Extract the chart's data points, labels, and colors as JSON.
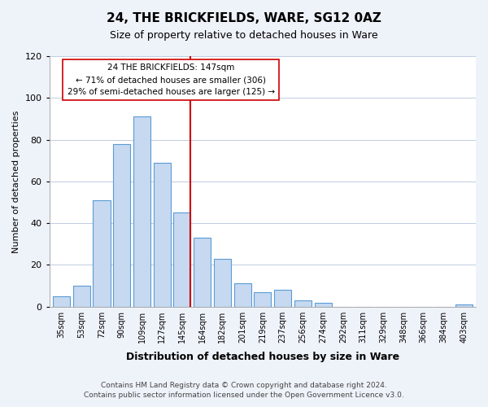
{
  "title": "24, THE BRICKFIELDS, WARE, SG12 0AZ",
  "subtitle": "Size of property relative to detached houses in Ware",
  "xlabel": "Distribution of detached houses by size in Ware",
  "ylabel": "Number of detached properties",
  "categories": [
    "35sqm",
    "53sqm",
    "72sqm",
    "90sqm",
    "109sqm",
    "127sqm",
    "145sqm",
    "164sqm",
    "182sqm",
    "201sqm",
    "219sqm",
    "237sqm",
    "256sqm",
    "274sqm",
    "292sqm",
    "311sqm",
    "329sqm",
    "348sqm",
    "366sqm",
    "384sqm",
    "403sqm"
  ],
  "values": [
    5,
    10,
    51,
    78,
    91,
    69,
    45,
    33,
    23,
    11,
    7,
    8,
    3,
    2,
    0,
    0,
    0,
    0,
    0,
    0,
    1
  ],
  "bar_color": "#c6d9f0",
  "bar_edge_color": "#5b9bd5",
  "marker_index": 6,
  "marker_color": "#cc0000",
  "ylim": [
    0,
    120
  ],
  "yticks": [
    0,
    20,
    40,
    60,
    80,
    100,
    120
  ],
  "annotation_title": "24 THE BRICKFIELDS: 147sqm",
  "annotation_line1": "← 71% of detached houses are smaller (306)",
  "annotation_line2": "29% of semi-detached houses are larger (125) →",
  "annotation_box_color": "#ffffff",
  "annotation_box_edge": "#cc0000",
  "footer_line1": "Contains HM Land Registry data © Crown copyright and database right 2024.",
  "footer_line2": "Contains public sector information licensed under the Open Government Licence v3.0.",
  "bg_color": "#eef2f9",
  "plot_bg_color": "#ffffff",
  "grid_color": "#c0cce0"
}
